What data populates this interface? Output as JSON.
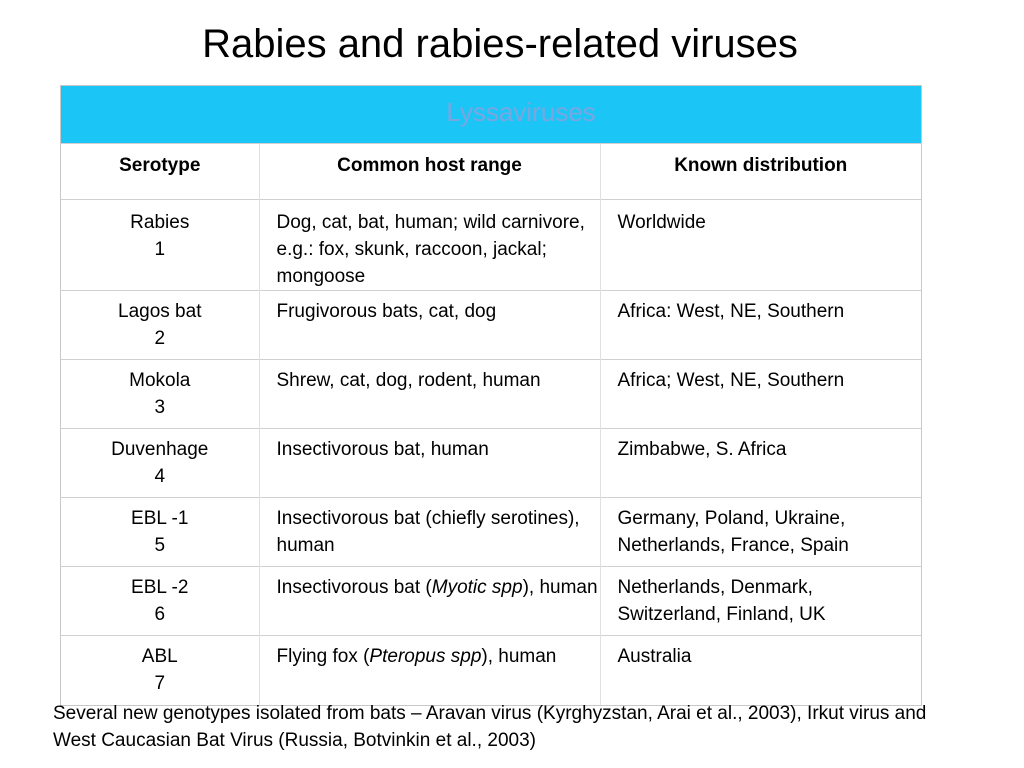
{
  "title": "Rabies and rabies-related viruses",
  "table": {
    "banner": "Lyssaviruses",
    "headers": {
      "serotype": "Serotype",
      "host": "Common host range",
      "distribution": "Known distribution"
    },
    "rows": [
      {
        "name": "Rabies",
        "number": "1",
        "host": [
          {
            "t": "Dog, cat, bat, human; wild carnivore, e.g.: fox, skunk, raccoon, jackal; mongoose",
            "i": false
          }
        ],
        "distribution": "Worldwide"
      },
      {
        "name": "Lagos bat",
        "number": "2",
        "host": [
          {
            "t": "Frugivorous bats, cat, dog",
            "i": false
          }
        ],
        "distribution": "Africa: West, NE, Southern"
      },
      {
        "name": "Mokola",
        "number": "3",
        "host": [
          {
            "t": "Shrew, cat, dog, rodent, human",
            "i": false
          }
        ],
        "distribution": "Africa; West, NE, Southern"
      },
      {
        "name": "Duvenhage",
        "number": "4",
        "host": [
          {
            "t": "Insectivorous bat, human",
            "i": false
          }
        ],
        "distribution": "Zimbabwe, S. Africa"
      },
      {
        "name": "EBL -1",
        "number": "5",
        "host": [
          {
            "t": "Insectivorous bat (chiefly serotines), human",
            "i": false
          }
        ],
        "distribution": "Germany, Poland, Ukraine, Netherlands, France, Spain"
      },
      {
        "name": "EBL -2",
        "number": "6",
        "host": [
          {
            "t": "Insectivorous bat (",
            "i": false
          },
          {
            "t": "Myotic spp",
            "i": true
          },
          {
            "t": "), human",
            "i": false
          }
        ],
        "distribution": "Netherlands, Denmark, Switzerland, Finland, UK"
      },
      {
        "name": "ABL",
        "number": "7",
        "host": [
          {
            "t": "Flying fox (",
            "i": false
          },
          {
            "t": "Pteropus spp",
            "i": true
          },
          {
            "t": "), human",
            "i": false
          }
        ],
        "distribution": "Australia"
      }
    ]
  },
  "footnote": "Several new genotypes isolated from bats  – Aravan virus (Kyrghyzstan, Arai et al., 2003), Irkut virus and West Caucasian Bat Virus (Russia, Botvinkin et al., 2003)"
}
